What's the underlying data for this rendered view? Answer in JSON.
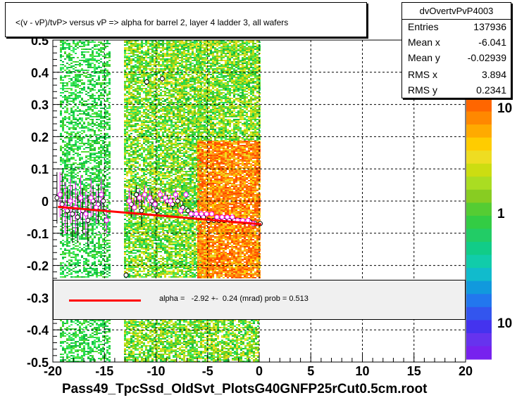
{
  "chart_data": {
    "type": "scatter",
    "title": "<(v - vP)/tvP> versus   vP => alpha for barrel 2, layer 4 ladder 3, all wafers",
    "xlabel": "",
    "ylabel": "",
    "xlim": [
      -20,
      20
    ],
    "ylim": [
      -0.5,
      0.5
    ],
    "x_ticks": [
      "-20",
      "-15",
      "-10",
      "-5",
      "0",
      "5",
      "10",
      "15",
      "20"
    ],
    "y_ticks": [
      "-0.5",
      "-0.4",
      "-0.3",
      "-0.2",
      "-0.1",
      "0",
      "0.1",
      "0.2",
      "0.3",
      "0.4",
      "0.5"
    ],
    "grid": true,
    "colorbar": {
      "scale": "log",
      "labels": [
        "10",
        "1",
        "10"
      ]
    },
    "series": [
      {
        "marker": "circle-black",
        "x": [
          -19.6,
          -19.1,
          -18.6,
          -18.1,
          -17.6,
          -17.1,
          -16.6,
          -16.1,
          -15.6,
          -15.1,
          -12.9,
          -12.4,
          -11.9,
          -11.4,
          -10.9,
          -10.4,
          -9.9,
          -9.4,
          -8.9,
          -8.4,
          -7.9,
          -7.4,
          -6.9,
          -6.4,
          -5.9,
          -5.4,
          -4.9,
          -4.4,
          -3.9,
          -3.4,
          -2.9,
          -2.4,
          -1.9,
          -1.4,
          -0.9,
          -0.4,
          0.1
        ],
        "y": [
          0.01,
          -0.01,
          -0.03,
          -0.04,
          -0.05,
          -0.03,
          -0.06,
          0.0,
          -0.01,
          0.0,
          -0.23,
          -0.01,
          0.02,
          -0.03,
          0.37,
          0.0,
          -0.03,
          0.38,
          0.0,
          -0.01,
          0.0,
          -0.02,
          -0.03,
          -0.04,
          -0.05,
          -0.05,
          -0.06,
          -0.06,
          -0.06,
          -0.06,
          -0.06,
          -0.06,
          -0.06,
          -0.065,
          -0.065,
          -0.07,
          -0.07
        ],
        "yerr": [
          0.08,
          0.1,
          0.07,
          0.09,
          0.08,
          0.07,
          0.08,
          0.05,
          0.06,
          0.04,
          0.01,
          0.04,
          0.03,
          0.05,
          0.01,
          0.03,
          0.03,
          0.01,
          0.02,
          0.02,
          0.02,
          0.02,
          0.01,
          0.01,
          0.01,
          0.01,
          0.008,
          0.007,
          0.006,
          0.006,
          0.005,
          0.005,
          0.005,
          0.006,
          0.006,
          0.006,
          0.006
        ]
      },
      {
        "marker": "circle-magenta",
        "x": [
          -19.3,
          -18.8,
          -18.3,
          -17.8,
          -17.3,
          -16.8,
          -16.3,
          -15.8,
          -15.3,
          -14.8,
          -12.6,
          -12.1,
          -11.6,
          -11.1,
          -10.6,
          -10.1,
          -9.6,
          -9.1,
          -8.6,
          -8.1,
          -7.6,
          -7.1,
          -6.6,
          -6.1,
          -5.6,
          -5.1,
          -4.6,
          -4.1,
          -3.6,
          -3.1,
          -2.6,
          -2.1,
          -1.6,
          -1.1,
          -0.6
        ],
        "y": [
          0.02,
          -0.02,
          0.0,
          -0.02,
          0.01,
          -0.04,
          0.01,
          -0.02,
          0.02,
          -0.06,
          0.0,
          -0.02,
          0.01,
          0.02,
          0.01,
          -0.01,
          0.02,
          0.01,
          0.0,
          0.02,
          -0.03,
          0.02,
          -0.04,
          -0.04,
          -0.04,
          -0.04,
          -0.04,
          -0.05,
          -0.05,
          -0.05,
          -0.05,
          -0.06,
          -0.06,
          -0.06,
          -0.07
        ],
        "yerr": [
          0.07,
          0.08,
          0.07,
          0.08,
          0.07,
          0.07,
          0.06,
          0.05,
          0.05,
          0.04,
          0.04,
          0.03,
          0.03,
          0.03,
          0.03,
          0.02,
          0.02,
          0.02,
          0.02,
          0.02,
          0.01,
          0.01,
          0.01,
          0.01,
          0.01,
          0.008,
          0.007,
          0.006,
          0.006,
          0.006,
          0.005,
          0.005,
          0.005,
          0.006,
          0.006
        ]
      }
    ],
    "fit_line": {
      "x": [
        -19.5,
        0.2
      ],
      "y": [
        -0.018,
        -0.072
      ],
      "color": "#ff0000"
    }
  },
  "stats": {
    "name": "dvOvertvPvP4003",
    "rows": [
      {
        "key": "Entries",
        "value": "137936"
      },
      {
        "key": "Mean x",
        "value": "-6.041"
      },
      {
        "key": "Mean y",
        "value": "-0.02939"
      },
      {
        "key": "RMS x",
        "value": "3.894"
      },
      {
        "key": "RMS y",
        "value": "0.2341"
      }
    ]
  },
  "fit_legend": {
    "text": "alpha =   -2.92 +-  0.24 (mrad) prob = 0.513",
    "line_color": "#ff0000"
  },
  "footer": {
    "file": "Pass49_TpcSsd_OldSvt_PlotsG40GNFP25rCut0.5cm.root"
  }
}
